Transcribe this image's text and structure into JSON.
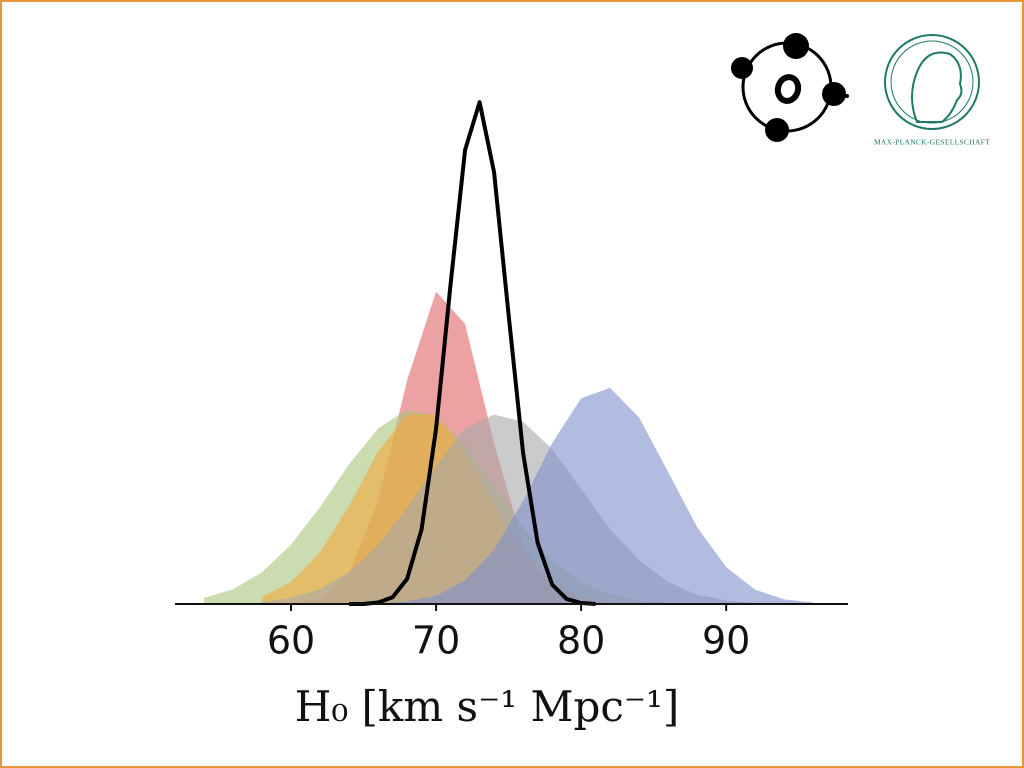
{
  "chart_data": {
    "type": "area",
    "xlabel": "H₀ [km s⁻¹ Mpc⁻¹]",
    "xlim": [
      52,
      98.4
    ],
    "xticks": [
      60,
      70,
      80,
      90
    ],
    "ylim": [
      0,
      100
    ],
    "fill_opacity": 0.6,
    "series": [
      {
        "color": "#e06464",
        "fill": true,
        "x": [
          60,
          62,
          64,
          66,
          68,
          70,
          72,
          74,
          76,
          78,
          80,
          82
        ],
        "values": [
          0.1,
          1.1,
          5.9,
          20,
          43.7,
          61,
          54.7,
          31.4,
          11.5,
          2.8,
          0.4,
          0
        ]
      },
      {
        "color": "#a9c47c",
        "fill": true,
        "x": [
          54,
          56,
          58,
          60,
          62,
          64,
          66,
          68,
          70,
          72,
          74,
          76,
          78,
          80,
          82,
          84,
          86
        ],
        "values": [
          1.2,
          2.9,
          6.2,
          11.6,
          18.9,
          27.3,
          34.3,
          38,
          36.6,
          31,
          23,
          15,
          8.5,
          4.3,
          1.9,
          0.7,
          0.2
        ]
      },
      {
        "color": "#f5a83e",
        "fill": true,
        "x": [
          58,
          60,
          62,
          64,
          66,
          68,
          70,
          72,
          74,
          76,
          78,
          80,
          82
        ],
        "values": [
          1.4,
          4.3,
          10.1,
          19.2,
          29.8,
          37,
          37,
          29.8,
          19.2,
          10.1,
          4.3,
          1.4,
          0.4
        ]
      },
      {
        "color": "#a8a8a8",
        "fill": true,
        "x": [
          58,
          60,
          62,
          64,
          66,
          68,
          70,
          72,
          74,
          76,
          78,
          80,
          82,
          84,
          86,
          88,
          90,
          92
        ],
        "values": [
          0.4,
          1.2,
          2.9,
          6.2,
          11.5,
          18.8,
          27,
          34.3,
          37,
          35.6,
          30.3,
          22.4,
          14.6,
          8.6,
          4.3,
          1.8,
          0.7,
          0.2
        ]
      },
      {
        "color": "#7f8fcb",
        "fill": true,
        "x": [
          66,
          68,
          70,
          72,
          74,
          76,
          78,
          80,
          82,
          84,
          86,
          88,
          90,
          92,
          94,
          96
        ],
        "values": [
          0.1,
          0.5,
          1.6,
          4.6,
          10.6,
          20.1,
          31.4,
          40.2,
          42.2,
          36.4,
          25.8,
          15,
          7.2,
          2.8,
          0.9,
          0.3
        ]
      },
      {
        "color": "#000000",
        "fill": false,
        "x": [
          64,
          65,
          66,
          67,
          68,
          69,
          70,
          71,
          72,
          73,
          74,
          75,
          76,
          77,
          78,
          79,
          80,
          81
        ],
        "values": [
          0,
          0,
          0.3,
          1.3,
          4.9,
          14.6,
          34.3,
          62.5,
          88.7,
          98,
          84.3,
          56.5,
          29.5,
          12,
          3.8,
          1,
          0.2,
          0
        ]
      }
    ]
  },
  "logos": {
    "mpg_text": "MAX-PLANCK-GESELLSCHAFT"
  }
}
